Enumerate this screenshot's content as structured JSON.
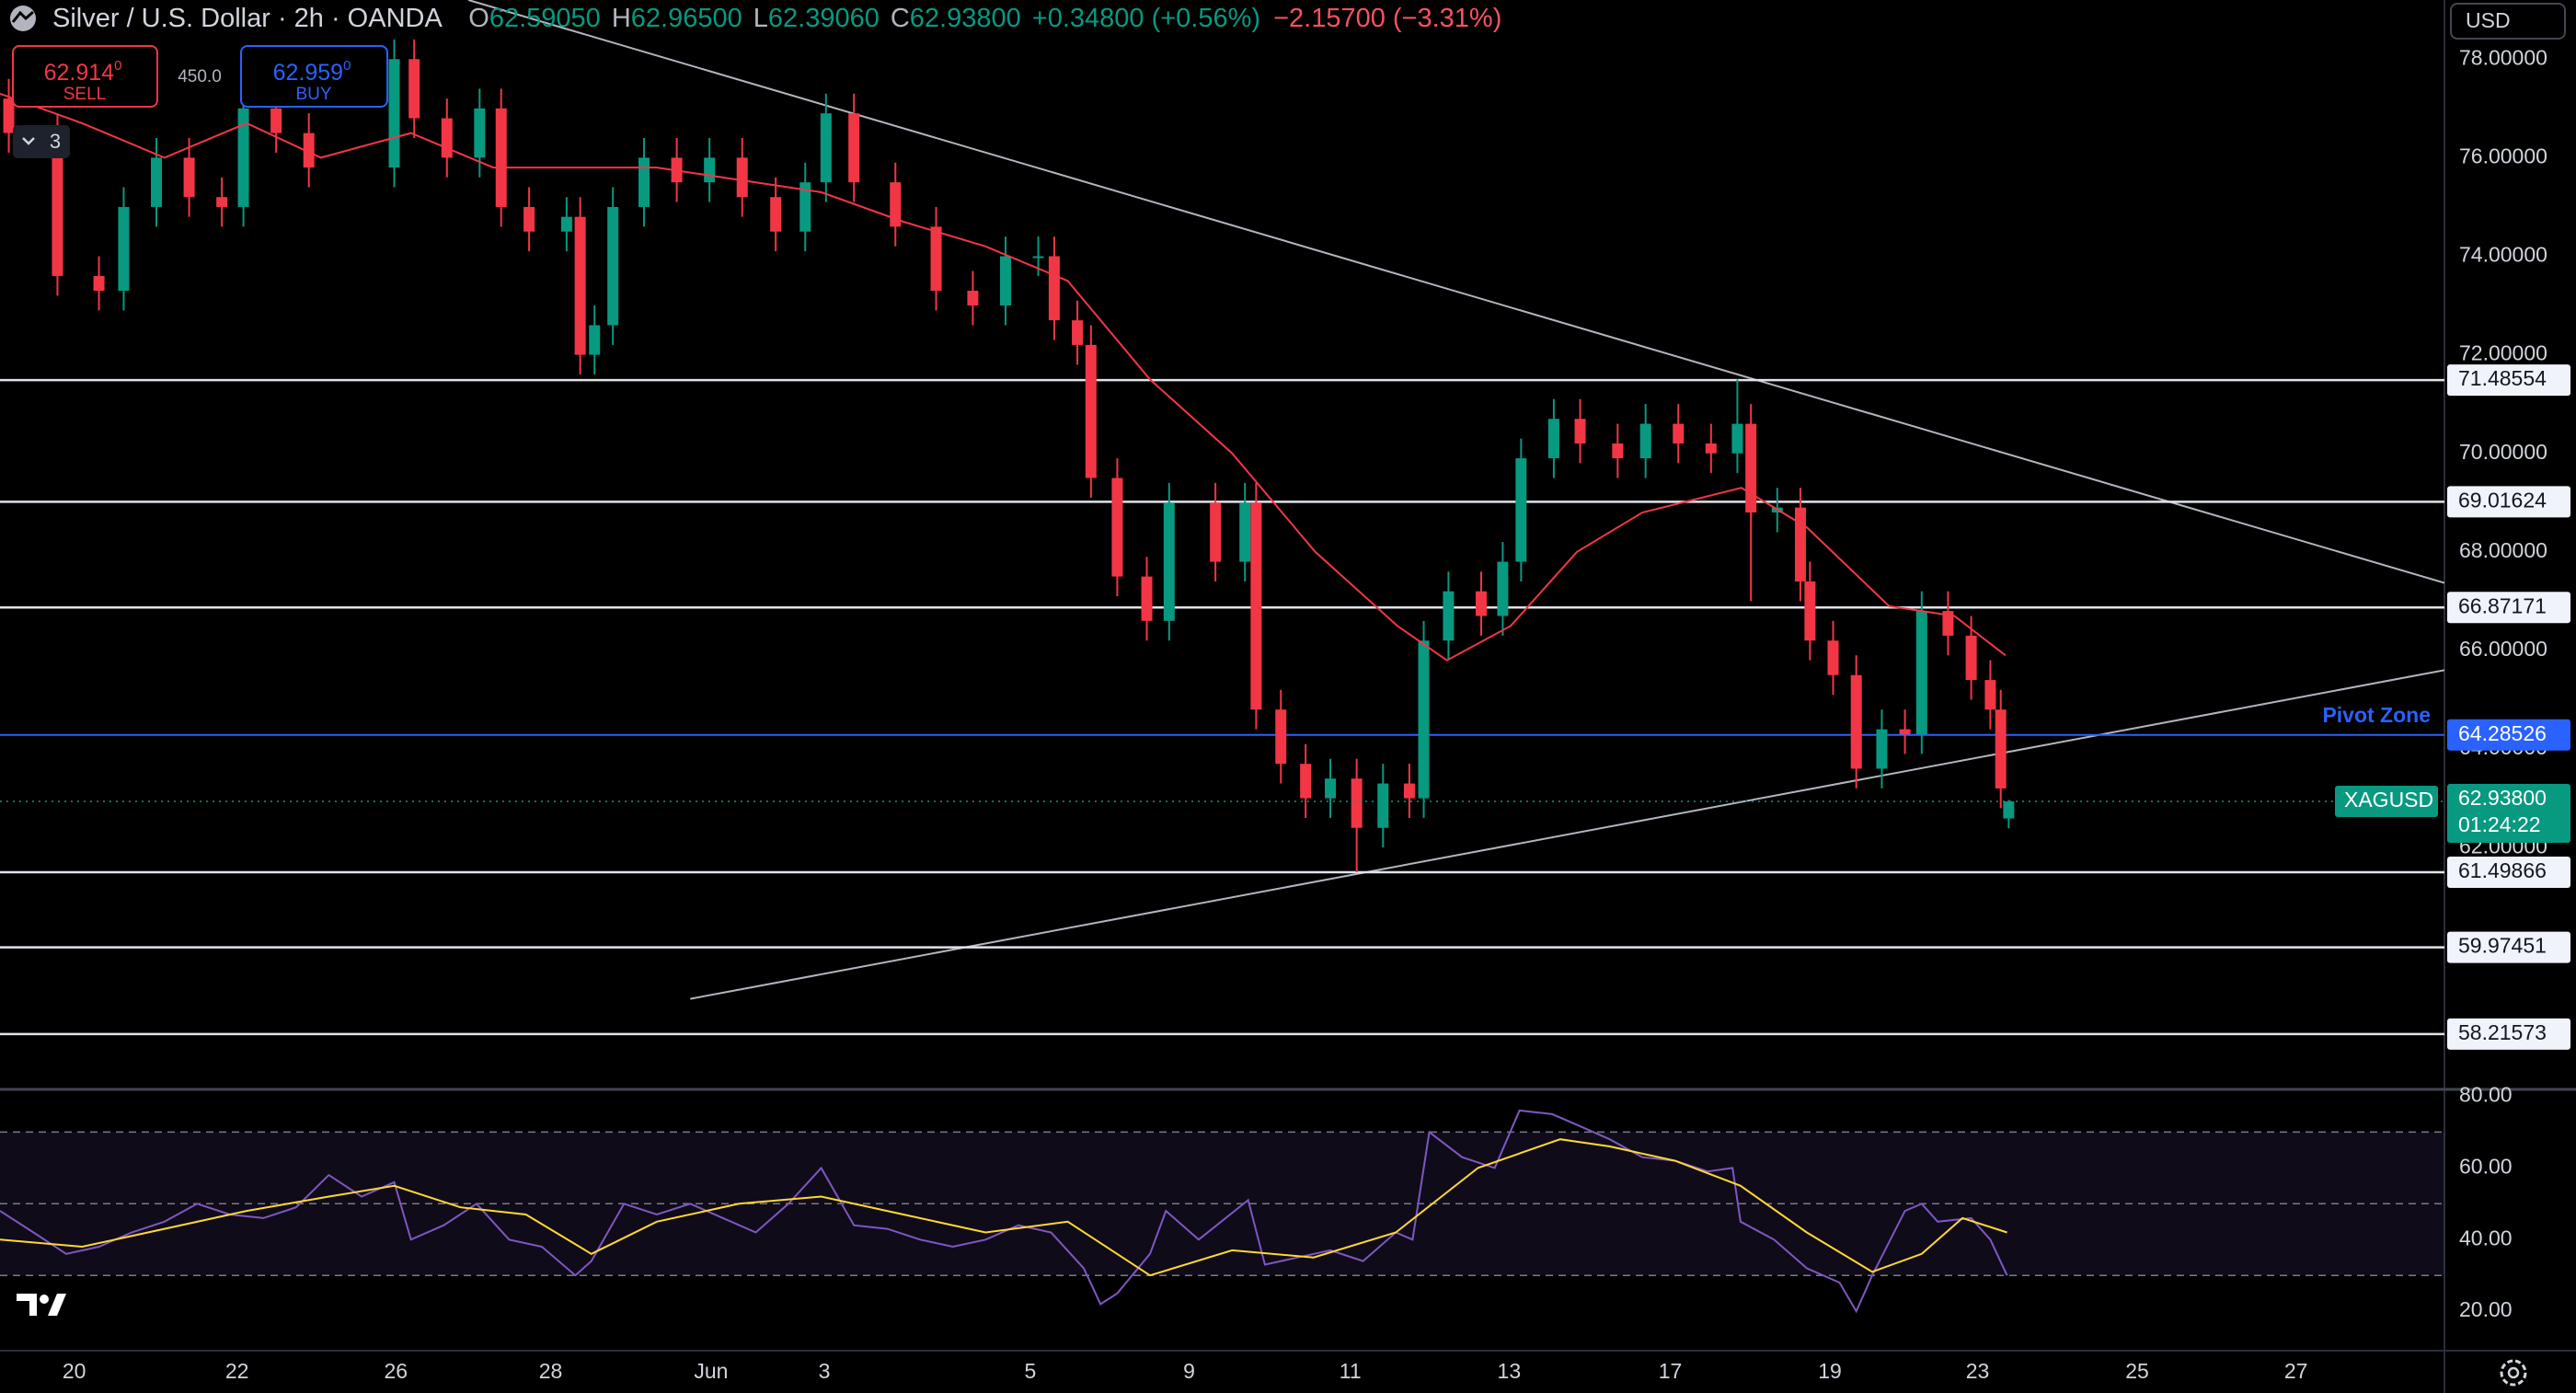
{
  "header": {
    "title": "Silver / U.S. Dollar · 2h · OANDA",
    "quote": [
      {
        "k": "O",
        "v": "62.59050"
      },
      {
        "k": "H",
        "v": "62.96500"
      },
      {
        "k": "L",
        "v": "62.39060"
      },
      {
        "k": "C",
        "v": "62.93800"
      }
    ],
    "change": "+0.34800 (+0.56%)",
    "change_total": "−2.15700 (−3.31%)"
  },
  "trade": {
    "sell": {
      "price": "62.914",
      "sup": "0",
      "label": "SELL"
    },
    "spread": "450.0",
    "buy": {
      "price": "62.959",
      "sup": "0",
      "label": "BUY"
    },
    "layers": "3",
    "currency": "USD"
  },
  "chart_data": [
    {
      "type": "candlestick",
      "symbol": "XAGUSD",
      "countdown": "01:24:22",
      "up_color": "#089981",
      "down_color": "#f23645",
      "xlim": [
        -0.93,
        29.7
      ],
      "ylim": [
        57.13,
        79.2
      ],
      "yticks": [
        {
          "value": 62,
          "label": "62.00000"
        },
        {
          "value": 64,
          "label": "64.00000"
        },
        {
          "value": 66,
          "label": "66.00000"
        },
        {
          "value": 68,
          "label": "68.00000"
        },
        {
          "value": 70,
          "label": "70.00000"
        },
        {
          "value": 72,
          "label": "72.00000"
        },
        {
          "value": 74,
          "label": "74.00000"
        },
        {
          "value": 76,
          "label": "76.00000"
        },
        {
          "value": 78,
          "label": "78.00000"
        }
      ],
      "candles": {
        "x": [
          -0.82,
          -0.21,
          0.31,
          0.62,
          1.03,
          1.44,
          1.85,
          2.12,
          2.53,
          2.94,
          4.01,
          4.26,
          4.67,
          5.08,
          5.35,
          5.7,
          6.17,
          6.34,
          6.52,
          6.75,
          7.14,
          7.55,
          7.96,
          8.37,
          8.79,
          9.16,
          9.42,
          9.77,
          10.29,
          10.8,
          11.26,
          11.67,
          12.08,
          12.28,
          12.57,
          12.74,
          13.07,
          13.44,
          13.72,
          14.3,
          14.67,
          14.81,
          15.12,
          15.43,
          15.74,
          16.07,
          16.4,
          16.73,
          16.91,
          17.22,
          17.63,
          17.9,
          18.13,
          18.54,
          18.87,
          19.34,
          19.69,
          20.1,
          20.51,
          20.84,
          21.01,
          21.34,
          21.63,
          21.75,
          22.04,
          22.33,
          22.65,
          22.94,
          23.15,
          23.48,
          23.77,
          24.01,
          24.14,
          24.24
        ],
        "open": [
          77.2,
          76.5,
          73.6,
          73.3,
          75.0,
          76.0,
          75.2,
          75.0,
          77.0,
          76.5,
          75.8,
          78.0,
          76.8,
          76.0,
          77.0,
          75.0,
          74.5,
          74.8,
          72.0,
          72.6,
          75.0,
          76.0,
          75.5,
          76.0,
          75.2,
          74.5,
          75.5,
          76.9,
          75.5,
          74.6,
          73.3,
          73.0,
          74.0,
          74.0,
          72.7,
          72.2,
          69.5,
          67.5,
          66.6,
          69.0,
          67.8,
          69.0,
          64.8,
          63.7,
          63.0,
          63.4,
          62.4,
          63.3,
          63.0,
          66.2,
          67.2,
          66.7,
          67.8,
          69.9,
          70.7,
          70.2,
          69.9,
          70.6,
          70.2,
          70.0,
          70.6,
          68.8,
          68.9,
          67.4,
          66.2,
          65.5,
          63.6,
          64.4,
          64.3,
          66.8,
          66.3,
          65.4,
          64.8,
          62.5905
        ],
        "high": [
          77.6,
          76.9,
          74.0,
          75.4,
          76.4,
          76.4,
          75.6,
          77.4,
          77.4,
          76.9,
          78.4,
          78.4,
          77.2,
          77.4,
          77.4,
          75.4,
          75.2,
          75.2,
          73.0,
          75.4,
          76.4,
          76.4,
          76.4,
          76.4,
          75.6,
          75.9,
          77.3,
          77.3,
          75.9,
          75.0,
          73.7,
          74.4,
          74.4,
          74.4,
          73.1,
          72.6,
          69.9,
          67.9,
          69.4,
          69.4,
          69.4,
          69.4,
          65.2,
          64.1,
          63.8,
          63.8,
          63.7,
          63.7,
          66.6,
          67.6,
          67.6,
          68.2,
          70.3,
          71.1,
          71.1,
          70.6,
          71.0,
          71.0,
          70.6,
          71.5,
          71.0,
          69.3,
          69.3,
          67.8,
          66.6,
          65.9,
          64.8,
          64.8,
          67.2,
          67.2,
          66.7,
          65.8,
          65.2,
          62.965
        ],
        "low": [
          76.1,
          73.2,
          72.9,
          72.9,
          74.6,
          74.8,
          74.6,
          74.6,
          76.1,
          75.4,
          75.4,
          76.4,
          75.6,
          75.6,
          74.6,
          74.1,
          74.1,
          71.6,
          71.6,
          72.2,
          74.6,
          75.1,
          75.1,
          74.8,
          74.1,
          74.1,
          75.1,
          75.1,
          74.2,
          72.9,
          72.6,
          72.6,
          73.6,
          72.3,
          71.8,
          69.1,
          67.1,
          66.2,
          66.2,
          67.4,
          67.4,
          64.4,
          63.3,
          62.6,
          62.6,
          61.5,
          62.0,
          62.6,
          62.6,
          65.8,
          66.3,
          66.3,
          67.4,
          69.5,
          69.8,
          69.5,
          69.5,
          69.8,
          69.6,
          69.6,
          67.0,
          68.4,
          67.0,
          65.8,
          65.1,
          63.2,
          63.2,
          63.9,
          63.9,
          65.9,
          65.0,
          64.4,
          62.8,
          62.3906
        ],
        "close": [
          76.5,
          73.6,
          73.3,
          75.0,
          76.0,
          75.2,
          75.0,
          77.0,
          76.5,
          75.8,
          78.0,
          76.8,
          76.0,
          77.0,
          75.0,
          74.5,
          74.8,
          72.0,
          72.6,
          75.0,
          76.0,
          75.5,
          76.0,
          75.2,
          74.5,
          75.5,
          76.9,
          75.5,
          74.6,
          73.3,
          73.0,
          74.0,
          74.0,
          72.7,
          72.2,
          69.5,
          67.5,
          66.6,
          69.0,
          67.8,
          69.0,
          64.8,
          63.7,
          63.0,
          63.4,
          62.4,
          63.3,
          63.0,
          66.2,
          67.2,
          66.7,
          67.8,
          69.9,
          70.7,
          70.2,
          69.9,
          70.6,
          70.2,
          70.0,
          70.6,
          68.8,
          68.9,
          67.4,
          66.2,
          65.5,
          63.6,
          64.4,
          64.3,
          66.8,
          66.3,
          65.4,
          64.8,
          63.2,
          62.938
        ]
      },
      "moving_average": {
        "color": "#f23645",
        "x": [
          -0.93,
          0.1,
          1.13,
          2.16,
          3.09,
          4.22,
          5.25,
          7.3,
          9.36,
          10.39,
          11.42,
          12.45,
          13.48,
          14.51,
          15.55,
          16.58,
          17.2,
          18.0,
          18.83,
          19.65,
          20.89,
          21.71,
          22.74,
          23.56,
          24.2
        ],
        "values": [
          77.3,
          76.7,
          76.0,
          76.7,
          76.0,
          76.5,
          75.8,
          75.8,
          75.3,
          74.7,
          74.2,
          73.5,
          71.5,
          70.0,
          68.0,
          66.5,
          65.8,
          66.5,
          68.0,
          68.8,
          69.3,
          68.5,
          66.9,
          66.7,
          65.9
        ]
      },
      "trendlines": [
        {
          "x": [
            4.94,
            29.7
          ],
          "y": [
            79.2,
            67.37
          ]
        },
        {
          "x": [
            7.72,
            29.7
          ],
          "y": [
            58.93,
            65.6
          ]
        }
      ],
      "levels": [
        71.48554,
        69.01624,
        66.87171,
        61.49866,
        59.97451,
        58.21573
      ],
      "pivot": {
        "value": 64.28526,
        "label": "Pivot Zone",
        "color": "#2962ff"
      },
      "last": {
        "value": 62.938,
        "label": "62.93800",
        "color": "#089981"
      }
    },
    {
      "type": "line",
      "xlim": [
        -0.93,
        29.7
      ],
      "ylim": [
        9,
        81.4
      ],
      "yticks": [
        {
          "value": 20,
          "label": "20.00"
        },
        {
          "value": 40,
          "label": "40.00"
        },
        {
          "value": 60,
          "label": "60.00"
        },
        {
          "value": 80,
          "label": "80.00"
        }
      ],
      "xticks": [
        {
          "value": 0,
          "label": "20"
        },
        {
          "value": 2.04,
          "label": "22"
        },
        {
          "value": 4.03,
          "label": "26"
        },
        {
          "value": 5.97,
          "label": "28"
        },
        {
          "value": 7.98,
          "label": "Jun"
        },
        {
          "value": 9.4,
          "label": "3"
        },
        {
          "value": 11.98,
          "label": "5"
        },
        {
          "value": 13.97,
          "label": "9"
        },
        {
          "value": 15.99,
          "label": "11"
        },
        {
          "value": 17.98,
          "label": "13"
        },
        {
          "value": 20,
          "label": "17"
        },
        {
          "value": 22,
          "label": "19"
        },
        {
          "value": 23.85,
          "label": "23"
        },
        {
          "value": 25.85,
          "label": "25"
        },
        {
          "value": 27.84,
          "label": "27"
        }
      ],
      "levels": [
        70,
        50,
        30
      ],
      "series": [
        {
          "color": "#7e57c2",
          "x": [
            -0.93,
            -0.51,
            -0.1,
            0.31,
            0.72,
            1.13,
            1.54,
            1.95,
            2.37,
            2.78,
            3.19,
            3.6,
            4.01,
            4.22,
            4.63,
            5.04,
            5.45,
            5.86,
            6.28,
            6.48,
            6.89,
            7.3,
            7.72,
            8.13,
            8.54,
            8.95,
            9.36,
            9.77,
            10.19,
            10.6,
            11.01,
            11.42,
            11.83,
            12.24,
            12.65,
            12.86,
            13.07,
            13.48,
            13.68,
            14.09,
            14.71,
            14.92,
            15.33,
            15.74,
            16.15,
            16.56,
            16.77,
            16.98,
            17.39,
            17.8,
            18.11,
            18.52,
            18.83,
            19.24,
            19.65,
            20.06,
            20.47,
            20.78,
            20.88,
            21.3,
            21.71,
            22.12,
            22.33,
            22.53,
            22.94,
            23.15,
            23.35,
            23.77,
            24.01,
            24.22
          ],
          "values": [
            48,
            42,
            36,
            38,
            42,
            45,
            50,
            47,
            46,
            49,
            58,
            52,
            56,
            40,
            44,
            50,
            40,
            38,
            30,
            34,
            50,
            47,
            50,
            46,
            42,
            50,
            60,
            44,
            43,
            40,
            38,
            40,
            44,
            42,
            32,
            22,
            25,
            36,
            48,
            40,
            51,
            33,
            35,
            37,
            34,
            42,
            40,
            70,
            63,
            60,
            76,
            75,
            72,
            68,
            63,
            62,
            59,
            60,
            45,
            40,
            32,
            28,
            20,
            30,
            48,
            50,
            45,
            46,
            40,
            30
          ]
        },
        {
          "color": "#fdd835",
          "x": [
            -0.93,
            0.1,
            1.13,
            2.16,
            3.19,
            4.01,
            4.84,
            5.66,
            6.48,
            7.3,
            8.33,
            9.36,
            10.39,
            11.42,
            12.45,
            13.48,
            14.51,
            15.53,
            16.56,
            17.59,
            18.62,
            19.24,
            20.06,
            20.88,
            21.71,
            22.53,
            23.15,
            23.66,
            24.22
          ],
          "values": [
            40,
            38,
            43,
            48,
            52,
            55,
            49,
            47,
            36,
            45,
            50,
            52,
            47,
            42,
            45,
            30,
            37,
            35,
            42,
            60,
            68,
            66,
            62,
            55,
            42,
            31,
            36,
            46,
            42
          ]
        }
      ]
    }
  ]
}
